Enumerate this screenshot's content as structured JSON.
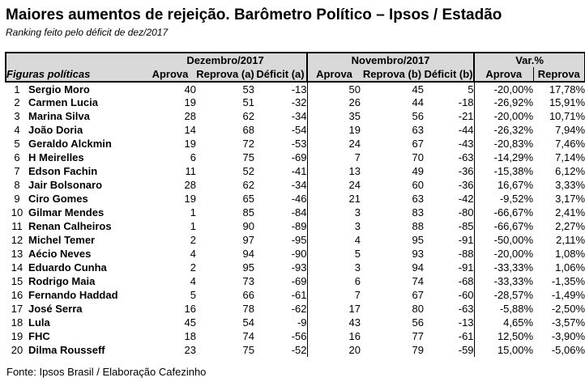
{
  "title": "Maiores aumentos de rejeição. Barômetro Político – Ipsos / Estadão",
  "subtitle": "Ranking feito pelo déficit de dez/2017",
  "source": "Fonte: Ipsos Brasil / Elaboração Cafezinho",
  "colors": {
    "header_bg": "#d9d9d9",
    "border": "#000000",
    "text": "#000000",
    "page_bg": "#ffffff"
  },
  "table": {
    "group_headers": [
      "Dezembro/2017",
      "Novembro/2017",
      "Var.%"
    ],
    "col_headers": {
      "figures": "Figuras políticas",
      "dez": [
        "Aprova",
        "Reprova (a)",
        "Déficit (a)"
      ],
      "nov": [
        "Aprova",
        "Reprova (b)",
        "Déficit (b)"
      ],
      "var": [
        "Aprova",
        "Reprova"
      ]
    },
    "rows": [
      {
        "rank": "1",
        "name": "Sergio Moro",
        "values": [
          "40",
          "53",
          "-13",
          "50",
          "45",
          "5",
          "-20,00%",
          "17,78%"
        ]
      },
      {
        "rank": "2",
        "name": "Carmen Lucia",
        "values": [
          "19",
          "51",
          "-32",
          "26",
          "44",
          "-18",
          "-26,92%",
          "15,91%"
        ]
      },
      {
        "rank": "3",
        "name": "Marina Silva",
        "values": [
          "28",
          "62",
          "-34",
          "35",
          "56",
          "-21",
          "-20,00%",
          "10,71%"
        ]
      },
      {
        "rank": "4",
        "name": "João Doria",
        "values": [
          "14",
          "68",
          "-54",
          "19",
          "63",
          "-44",
          "-26,32%",
          "7,94%"
        ]
      },
      {
        "rank": "5",
        "name": "Geraldo Alckmin",
        "values": [
          "19",
          "72",
          "-53",
          "24",
          "67",
          "-43",
          "-20,83%",
          "7,46%"
        ]
      },
      {
        "rank": "6",
        "name": "H Meirelles",
        "values": [
          "6",
          "75",
          "-69",
          "7",
          "70",
          "-63",
          "-14,29%",
          "7,14%"
        ]
      },
      {
        "rank": "7",
        "name": "Edson Fachin",
        "values": [
          "11",
          "52",
          "-41",
          "13",
          "49",
          "-36",
          "-15,38%",
          "6,12%"
        ]
      },
      {
        "rank": "8",
        "name": "Jair Bolsonaro",
        "values": [
          "28",
          "62",
          "-34",
          "24",
          "60",
          "-36",
          "16,67%",
          "3,33%"
        ]
      },
      {
        "rank": "9",
        "name": "Ciro Gomes",
        "values": [
          "19",
          "65",
          "-46",
          "21",
          "63",
          "-42",
          "-9,52%",
          "3,17%"
        ]
      },
      {
        "rank": "10",
        "name": "Gilmar Mendes",
        "values": [
          "1",
          "85",
          "-84",
          "3",
          "83",
          "-80",
          "-66,67%",
          "2,41%"
        ]
      },
      {
        "rank": "11",
        "name": "Renan Calheiros",
        "values": [
          "1",
          "90",
          "-89",
          "3",
          "88",
          "-85",
          "-66,67%",
          "2,27%"
        ]
      },
      {
        "rank": "12",
        "name": "Michel Temer",
        "values": [
          "2",
          "97",
          "-95",
          "4",
          "95",
          "-91",
          "-50,00%",
          "2,11%"
        ]
      },
      {
        "rank": "13",
        "name": "Aécio Neves",
        "values": [
          "4",
          "94",
          "-90",
          "5",
          "93",
          "-88",
          "-20,00%",
          "1,08%"
        ]
      },
      {
        "rank": "14",
        "name": "Eduardo Cunha",
        "values": [
          "2",
          "95",
          "-93",
          "3",
          "94",
          "-91",
          "-33,33%",
          "1,06%"
        ]
      },
      {
        "rank": "15",
        "name": "Rodrigo Maia",
        "values": [
          "4",
          "73",
          "-69",
          "6",
          "74",
          "-68",
          "-33,33%",
          "-1,35%"
        ]
      },
      {
        "rank": "16",
        "name": "Fernando Haddad",
        "values": [
          "5",
          "66",
          "-61",
          "7",
          "67",
          "-60",
          "-28,57%",
          "-1,49%"
        ]
      },
      {
        "rank": "17",
        "name": "José Serra",
        "values": [
          "16",
          "78",
          "-62",
          "17",
          "80",
          "-63",
          "-5,88%",
          "-2,50%"
        ]
      },
      {
        "rank": "18",
        "name": "Lula",
        "values": [
          "45",
          "54",
          "-9",
          "43",
          "56",
          "-13",
          "4,65%",
          "-3,57%"
        ]
      },
      {
        "rank": "19",
        "name": "FHC",
        "values": [
          "18",
          "74",
          "-56",
          "16",
          "77",
          "-61",
          "12,50%",
          "-3,90%"
        ]
      },
      {
        "rank": "20",
        "name": "Dilma Rousseff",
        "values": [
          "23",
          "75",
          "-52",
          "20",
          "79",
          "-59",
          "15,00%",
          "-5,06%"
        ]
      }
    ]
  }
}
